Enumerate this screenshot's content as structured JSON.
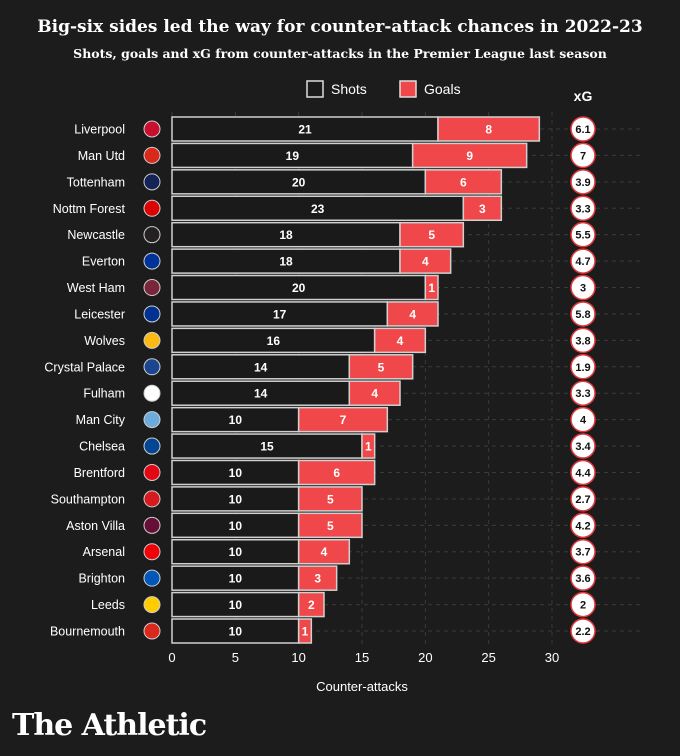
{
  "chart_data": {
    "type": "bar",
    "stacked": true,
    "orientation": "horizontal",
    "title": "Big-six sides led the way for counter-attack chances in 2022-23",
    "subtitle": "Shots, goals and xG from counter-attacks in the Premier League last season",
    "xlabel": "Counter-attacks",
    "xlim": [
      0,
      30
    ],
    "xticks": [
      0,
      5,
      10,
      15,
      20,
      25,
      30
    ],
    "grid": true,
    "legend_position": "top-center",
    "categories": [
      "Liverpool",
      "Man Utd",
      "Tottenham",
      "Nottm Forest",
      "Newcastle",
      "Everton",
      "West Ham",
      "Leicester",
      "Wolves",
      "Crystal Palace",
      "Fulham",
      "Man City",
      "Chelsea",
      "Brentford",
      "Southampton",
      "Aston Villa",
      "Arsenal",
      "Brighton",
      "Leeds",
      "Bournemouth"
    ],
    "series": [
      {
        "name": "Shots",
        "color": "#1a1a1a",
        "values": [
          21,
          19,
          20,
          23,
          18,
          18,
          20,
          17,
          16,
          14,
          14,
          10,
          15,
          10,
          10,
          10,
          10,
          10,
          10,
          10
        ]
      },
      {
        "name": "Goals",
        "color": "#f0474a",
        "values": [
          8,
          9,
          6,
          3,
          5,
          4,
          1,
          4,
          4,
          5,
          4,
          7,
          1,
          6,
          5,
          5,
          4,
          3,
          2,
          1
        ]
      }
    ],
    "xg_label": "xG",
    "xg": [
      6.1,
      7,
      3.9,
      3.3,
      5.5,
      4.7,
      3,
      5.8,
      3.8,
      1.9,
      3.3,
      4,
      3.4,
      4.4,
      2.7,
      4.2,
      3.7,
      3.6,
      2,
      2.2
    ],
    "crest_colors": [
      "#c8102e",
      "#da291c",
      "#132257",
      "#dd0000",
      "#241f20",
      "#003399",
      "#7a263a",
      "#003090",
      "#fdb913",
      "#1b458f",
      "#ffffff",
      "#6cabdd",
      "#034694",
      "#e30613",
      "#d71920",
      "#670e36",
      "#ef0107",
      "#0057b8",
      "#ffcd00",
      "#da291c"
    ]
  },
  "branding": {
    "logo": "The Athletic"
  }
}
